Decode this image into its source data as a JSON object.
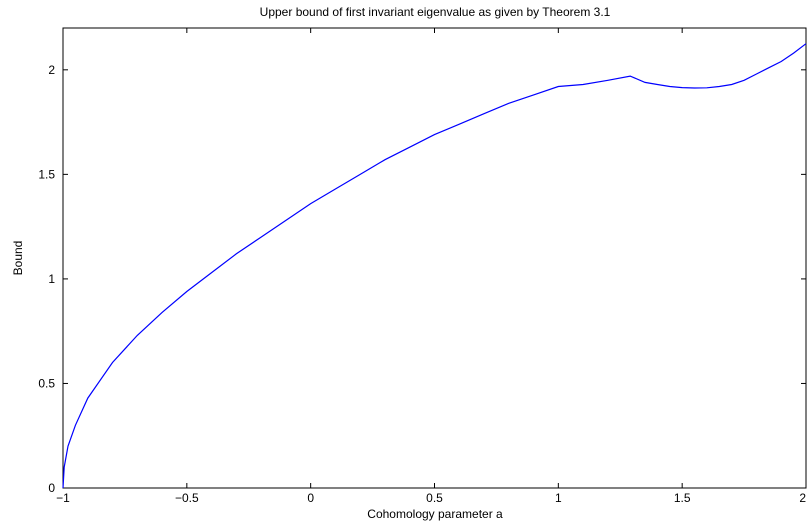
{
  "chart_data": {
    "type": "line",
    "title": "Upper bound of first invariant eigenvalue as given by Theorem 3.1",
    "xlabel": "Cohomology parameter a",
    "ylabel": "Bound",
    "xlim": [
      -1,
      2
    ],
    "ylim": [
      0,
      2.2
    ],
    "grid": false,
    "legend": "none",
    "x_ticks": [
      {
        "value": -1,
        "label": "−1"
      },
      {
        "value": -0.5,
        "label": "−0.5"
      },
      {
        "value": 0,
        "label": "0"
      },
      {
        "value": 0.5,
        "label": "0.5"
      },
      {
        "value": 1,
        "label": "1"
      },
      {
        "value": 1.5,
        "label": "1.5"
      },
      {
        "value": 2,
        "label": "2"
      }
    ],
    "y_ticks": [
      {
        "value": 0,
        "label": "0"
      },
      {
        "value": 0.5,
        "label": "0.5"
      },
      {
        "value": 1,
        "label": "1"
      },
      {
        "value": 1.5,
        "label": "1.5"
      },
      {
        "value": 2,
        "label": "2"
      }
    ],
    "series": [
      {
        "color": "#0000ff",
        "x": [
          -1,
          -0.995,
          -0.98,
          -0.95,
          -0.9,
          -0.8,
          -0.7,
          -0.6,
          -0.5,
          -0.4,
          -0.3,
          -0.2,
          -0.1,
          0,
          0.1,
          0.2,
          0.3,
          0.4,
          0.5,
          0.6,
          0.7,
          0.8,
          0.9,
          1.0,
          1.1,
          1.2,
          1.29,
          1.35,
          1.4,
          1.45,
          1.5,
          1.55,
          1.6,
          1.65,
          1.7,
          1.75,
          1.8,
          1.85,
          1.9,
          1.95,
          2.0
        ],
        "y": [
          0,
          0.1,
          0.2,
          0.3,
          0.43,
          0.6,
          0.73,
          0.84,
          0.94,
          1.03,
          1.12,
          1.2,
          1.28,
          1.36,
          1.43,
          1.5,
          1.57,
          1.63,
          1.69,
          1.74,
          1.79,
          1.84,
          1.88,
          1.92,
          1.93,
          1.95,
          1.97,
          1.94,
          1.93,
          1.92,
          1.915,
          1.913,
          1.914,
          1.92,
          1.93,
          1.95,
          1.98,
          2.01,
          2.04,
          2.08,
          2.125
        ]
      }
    ]
  }
}
